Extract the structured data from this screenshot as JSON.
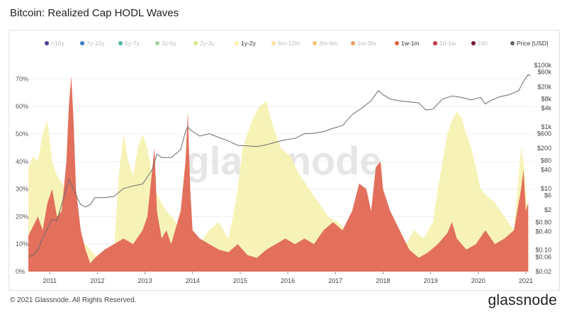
{
  "header": {
    "title": "Bitcoin: Realized Cap HODL Waves"
  },
  "footer": {
    "copyright": "© 2021 Glassnode. All Rights Reserved.",
    "brand": "glassnode"
  },
  "watermark": "glassnode",
  "chart_data": {
    "type": "area",
    "title": "Bitcoin: Realized Cap HODL Waves",
    "xlabel": "",
    "ylabel_left": "",
    "ylabel_right": "Price [USD]",
    "x_ticks": [
      "2011",
      "2012",
      "2013",
      "2014",
      "2015",
      "2016",
      "2017",
      "2018",
      "2019",
      "2020",
      "2021"
    ],
    "y_left_ticks": [
      "0%",
      "10%",
      "20%",
      "30%",
      "40%",
      "50%",
      "60%",
      "70%"
    ],
    "y_right_ticks": [
      "$100k",
      "$60k",
      "$20k",
      "$8k",
      "$4k",
      "$1k",
      "$600",
      "$200",
      "$80",
      "$40",
      "$10",
      "$6",
      "$2",
      "$0.80",
      "$0.40",
      "$0.10",
      "$0.06",
      "$0.02"
    ],
    "ylim_left": [
      0,
      0.75
    ],
    "ylim_right": [
      0.02,
      100000
    ],
    "xlim": [
      2010.6,
      2021.2
    ],
    "legend": [
      {
        "name": ">10y",
        "color": "#4b3f9e",
        "active": false
      },
      {
        "name": "7y-10y",
        "color": "#3b7fc4",
        "active": false
      },
      {
        "name": "5y-7y",
        "color": "#4fb6a3",
        "active": false
      },
      {
        "name": "3y-5y",
        "color": "#9fd39b",
        "active": false
      },
      {
        "name": "2y-3y",
        "color": "#d3e68c",
        "active": false
      },
      {
        "name": "1y-2y",
        "color": "#f7f2a8",
        "active": true
      },
      {
        "name": "6m-12m",
        "color": "#f9e39a",
        "active": false
      },
      {
        "name": "3m-6m",
        "color": "#f6c07d",
        "active": false
      },
      {
        "name": "1m-3m",
        "color": "#ef9b63",
        "active": false
      },
      {
        "name": "1w-1m",
        "color": "#e3614b",
        "active": true
      },
      {
        "name": "1d-1w",
        "color": "#c83145",
        "active": false
      },
      {
        "name": "24h",
        "color": "#7a1232",
        "active": false
      },
      {
        "name": "Price [USD]",
        "color": "#666666",
        "active": true
      }
    ],
    "series": [
      {
        "name": "1w-1m",
        "color": "#e2705c",
        "x": [
          2010.6,
          2010.8,
          2010.9,
          2011.0,
          2011.1,
          2011.2,
          2011.3,
          2011.4,
          2011.45,
          2011.5,
          2011.55,
          2011.6,
          2011.7,
          2011.8,
          2011.9,
          2012.0,
          2012.2,
          2012.4,
          2012.6,
          2012.8,
          2013.0,
          2013.1,
          2013.25,
          2013.3,
          2013.4,
          2013.5,
          2013.6,
          2013.8,
          2013.9,
          2013.95,
          2014.0,
          2014.05,
          2014.2,
          2014.4,
          2014.6,
          2014.8,
          2015.0,
          2015.2,
          2015.4,
          2015.6,
          2015.8,
          2016.0,
          2016.2,
          2016.4,
          2016.6,
          2016.8,
          2017.0,
          2017.2,
          2017.4,
          2017.55,
          2017.7,
          2017.8,
          2017.9,
          2018.0,
          2018.05,
          2018.2,
          2018.4,
          2018.6,
          2018.8,
          2019.0,
          2019.2,
          2019.4,
          2019.5,
          2019.6,
          2019.8,
          2020.0,
          2020.2,
          2020.4,
          2020.6,
          2020.8,
          2020.95,
          2021.0,
          2021.05,
          2021.1
        ],
        "y": [
          0.13,
          0.2,
          0.15,
          0.25,
          0.3,
          0.2,
          0.22,
          0.4,
          0.6,
          0.71,
          0.55,
          0.3,
          0.15,
          0.08,
          0.03,
          0.05,
          0.08,
          0.1,
          0.12,
          0.1,
          0.15,
          0.2,
          0.45,
          0.22,
          0.12,
          0.15,
          0.1,
          0.22,
          0.4,
          0.58,
          0.3,
          0.15,
          0.12,
          0.1,
          0.08,
          0.07,
          0.1,
          0.06,
          0.05,
          0.08,
          0.1,
          0.12,
          0.1,
          0.12,
          0.1,
          0.15,
          0.18,
          0.15,
          0.22,
          0.32,
          0.3,
          0.22,
          0.38,
          0.4,
          0.3,
          0.22,
          0.15,
          0.08,
          0.05,
          0.07,
          0.1,
          0.14,
          0.18,
          0.12,
          0.08,
          0.1,
          0.15,
          0.1,
          0.12,
          0.15,
          0.3,
          0.37,
          0.22,
          0.25
        ]
      },
      {
        "name": "1y-2y",
        "color": "#f7f2b3",
        "x": [
          2010.6,
          2010.7,
          2010.8,
          2010.9,
          2011.0,
          2011.1,
          2011.2,
          2011.3,
          2011.4,
          2011.6,
          2011.8,
          2012.0,
          2012.2,
          2012.4,
          2012.5,
          2012.6,
          2012.7,
          2012.8,
          2012.9,
          2013.0,
          2013.1,
          2013.2,
          2013.3,
          2013.5,
          2013.7,
          2013.9,
          2014.0,
          2014.2,
          2014.4,
          2014.6,
          2014.8,
          2014.9,
          2015.0,
          2015.1,
          2015.3,
          2015.45,
          2015.6,
          2015.7,
          2015.9,
          2016.1,
          2016.3,
          2016.5,
          2016.7,
          2016.9,
          2017.1,
          2017.3,
          2017.5,
          2017.7,
          2017.9,
          2018.1,
          2018.3,
          2018.5,
          2018.7,
          2018.9,
          2019.1,
          2019.2,
          2019.3,
          2019.4,
          2019.5,
          2019.6,
          2019.7,
          2019.8,
          2019.9,
          2020.0,
          2020.1,
          2020.2,
          2020.4,
          2020.6,
          2020.8,
          2020.95,
          2021.0,
          2021.1
        ],
        "y": [
          0.38,
          0.42,
          0.4,
          0.5,
          0.55,
          0.4,
          0.35,
          0.32,
          0.3,
          0.12,
          0.1,
          0.06,
          0.05,
          0.08,
          0.35,
          0.5,
          0.4,
          0.35,
          0.45,
          0.5,
          0.45,
          0.35,
          0.28,
          0.22,
          0.18,
          0.1,
          0.08,
          0.1,
          0.15,
          0.18,
          0.12,
          0.2,
          0.3,
          0.45,
          0.55,
          0.6,
          0.62,
          0.55,
          0.45,
          0.42,
          0.35,
          0.3,
          0.25,
          0.2,
          0.18,
          0.15,
          0.12,
          0.1,
          0.08,
          0.07,
          0.06,
          0.09,
          0.15,
          0.12,
          0.18,
          0.3,
          0.4,
          0.5,
          0.55,
          0.58,
          0.56,
          0.5,
          0.45,
          0.38,
          0.3,
          0.28,
          0.25,
          0.2,
          0.15,
          0.45,
          0.4,
          0.2
        ]
      },
      {
        "name": "Price [USD]",
        "color": "#6b6b6b",
        "x": [
          2010.6,
          2010.7,
          2010.8,
          2010.9,
          2011.0,
          2011.1,
          2011.2,
          2011.3,
          2011.4,
          2011.45,
          2011.5,
          2011.6,
          2011.7,
          2011.8,
          2011.9,
          2012.0,
          2012.2,
          2012.4,
          2012.6,
          2012.8,
          2013.0,
          2013.2,
          2013.3,
          2013.4,
          2013.6,
          2013.8,
          2013.9,
          2013.95,
          2014.0,
          2014.2,
          2014.4,
          2014.6,
          2014.8,
          2015.0,
          2015.2,
          2015.4,
          2015.6,
          2015.8,
          2016.0,
          2016.2,
          2016.4,
          2016.6,
          2016.8,
          2017.0,
          2017.2,
          2017.4,
          2017.6,
          2017.8,
          2017.95,
          2018.05,
          2018.2,
          2018.4,
          2018.6,
          2018.8,
          2018.95,
          2019.1,
          2019.3,
          2019.5,
          2019.7,
          2019.9,
          2020.1,
          2020.2,
          2020.3,
          2020.5,
          2020.7,
          2020.9,
          2021.0,
          2021.1,
          2021.15
        ],
        "y": [
          0.06,
          0.07,
          0.1,
          0.25,
          0.5,
          1.0,
          0.9,
          3,
          10,
          20,
          14,
          6,
          3,
          2.5,
          3,
          5,
          5,
          5.5,
          10,
          12,
          14,
          40,
          130,
          100,
          100,
          180,
          700,
          1000,
          800,
          500,
          600,
          450,
          350,
          250,
          240,
          230,
          260,
          320,
          380,
          420,
          600,
          620,
          700,
          900,
          1100,
          2500,
          4000,
          7000,
          15000,
          11000,
          8000,
          7000,
          6500,
          6000,
          3500,
          3800,
          8000,
          10000,
          9000,
          7500,
          9000,
          5500,
          7000,
          9500,
          11000,
          15000,
          30000,
          50000,
          45000
        ]
      }
    ]
  }
}
